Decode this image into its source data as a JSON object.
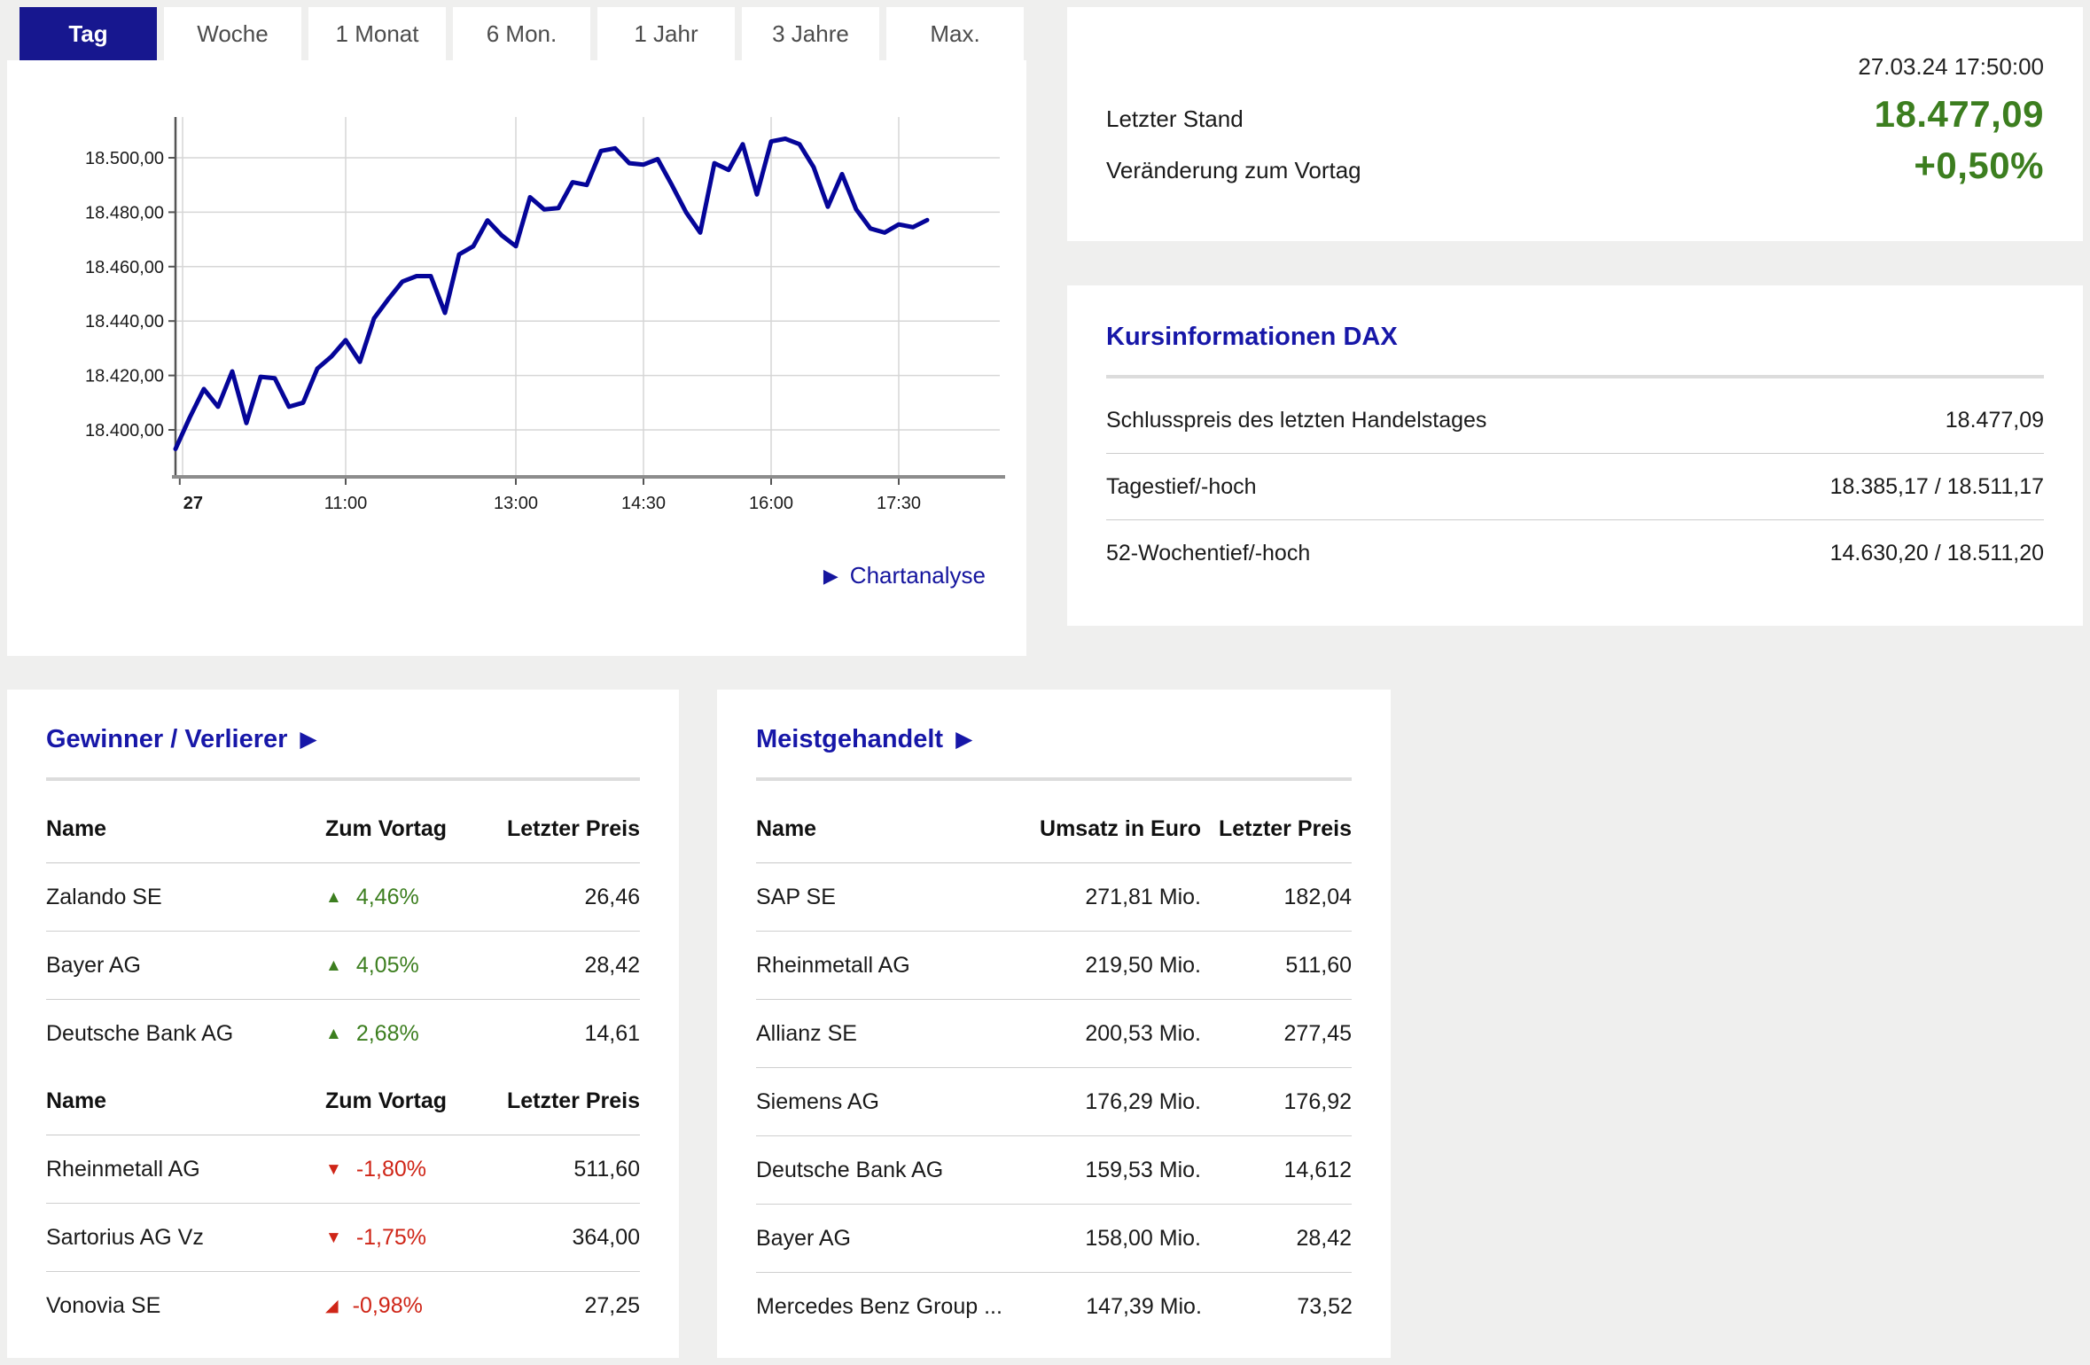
{
  "colors": {
    "accent_navy": "#17178f",
    "title_blue": "#1717a8",
    "line_navy": "#050599",
    "positive_green": "#3c7e1f",
    "negative_red": "#cf2517",
    "page_background": "#efefee"
  },
  "tabs": [
    {
      "label": "Tag",
      "state": "active"
    },
    {
      "label": "Woche",
      "state": ""
    },
    {
      "label": "1 Monat",
      "state": ""
    },
    {
      "label": "6 Mon.",
      "state": ""
    },
    {
      "label": "1 Jahr",
      "state": ""
    },
    {
      "label": "3 Jahre",
      "state": ""
    },
    {
      "label": "Max.",
      "state": ""
    }
  ],
  "chart_link": {
    "icon": "▶",
    "label": "Chartanalyse"
  },
  "chart_data": {
    "type": "line",
    "title": "DAX Intraday (Tag)",
    "line_color": "#050599",
    "grid": true,
    "x_range": [
      "09:00",
      "17:50"
    ],
    "ylim": [
      18383,
      18513
    ],
    "y_ticks": [
      {
        "value": 18400,
        "label": "18.400,00"
      },
      {
        "value": 18420,
        "label": "18.420,00"
      },
      {
        "value": 18440,
        "label": "18.440,00"
      },
      {
        "value": 18460,
        "label": "18.460,00"
      },
      {
        "value": 18480,
        "label": "18.480,00"
      },
      {
        "value": 18500,
        "label": "18.500,00"
      }
    ],
    "x_ticks": [
      {
        "label": "27",
        "time": "09:03",
        "bold": true,
        "grid": false
      },
      {
        "label": "11:00",
        "time": "11:00",
        "bold": false,
        "grid": true
      },
      {
        "label": "13:00",
        "time": "13:00",
        "bold": false,
        "grid": true
      },
      {
        "label": "14:30",
        "time": "14:30",
        "bold": false,
        "grid": true
      },
      {
        "label": "16:00",
        "time": "16:00",
        "bold": false,
        "grid": true
      },
      {
        "label": "17:30",
        "time": "17:30",
        "bold": false,
        "grid": true
      }
    ],
    "times": [
      "09:00",
      "09:10",
      "09:20",
      "09:30",
      "09:40",
      "09:50",
      "10:00",
      "10:10",
      "10:20",
      "10:30",
      "10:40",
      "10:50",
      "11:00",
      "11:10",
      "11:20",
      "11:30",
      "11:40",
      "11:50",
      "12:00",
      "12:10",
      "12:20",
      "12:30",
      "12:40",
      "12:50",
      "13:00",
      "13:10",
      "13:20",
      "13:30",
      "13:40",
      "13:50",
      "14:00",
      "14:10",
      "14:20",
      "14:30",
      "14:40",
      "14:50",
      "15:00",
      "15:10",
      "15:20",
      "15:30",
      "15:40",
      "15:50",
      "16:00",
      "16:10",
      "16:20",
      "16:30",
      "16:40",
      "16:50",
      "17:00",
      "17:10",
      "17:20",
      "17:30",
      "17:40",
      "17:50"
    ],
    "values": [
      18393,
      18404.5,
      18415,
      18408.5,
      18421.5,
      18402.5,
      18419.5,
      18419,
      18408.5,
      18410,
      18422.5,
      18427,
      18433,
      18425,
      18441,
      18448,
      18454.5,
      18456.5,
      18456.5,
      18443,
      18464.5,
      18467.5,
      18477,
      18471.5,
      18467.5,
      18485.5,
      18481,
      18481.5,
      18491,
      18490,
      18502.5,
      18503.5,
      18498,
      18497.5,
      18499.5,
      18490,
      18480,
      18472.5,
      18498,
      18495.5,
      18505,
      18486.5,
      18506,
      18507,
      18505,
      18496.5,
      18482,
      18494,
      18481,
      18474,
      18472.5,
      18475.5,
      18474.5,
      18477.09
    ]
  },
  "quote": {
    "timestamp": "27.03.24 17:50:00",
    "last_label": "Letzter Stand",
    "last_value": "18.477,09",
    "change_label": "Veränderung zum Vortag",
    "change_value": "+0,50%"
  },
  "kursinfo": {
    "title": "Kursinformationen DAX",
    "rows": [
      {
        "label": "Schlusspreis des letzten Handelstages",
        "value": "18.477,09"
      },
      {
        "label": "Tagestief/-hoch",
        "value": "18.385,17 / 18.511,17"
      },
      {
        "label": "52-Wochentief/-hoch",
        "value": "14.630,20 / 18.511,20"
      }
    ]
  },
  "gainers_losers": {
    "title": "Gewinner / Verlierer",
    "icon": "▶",
    "columns": [
      "Name",
      "Zum Vortag",
      "Letzter Preis"
    ],
    "gainers": [
      {
        "name": "Zalando SE",
        "arrow": "▲",
        "direction": "up",
        "change": "4,46%",
        "price": "26,46"
      },
      {
        "name": "Bayer AG",
        "arrow": "▲",
        "direction": "up",
        "change": "4,05%",
        "price": "28,42"
      },
      {
        "name": "Deutsche Bank AG",
        "arrow": "▲",
        "direction": "up",
        "change": "2,68%",
        "price": "14,61"
      }
    ],
    "losers": [
      {
        "name": "Rheinmetall AG",
        "arrow": "▼",
        "direction": "down",
        "change": "-1,80%",
        "price": "511,60"
      },
      {
        "name": "Sartorius AG Vz",
        "arrow": "▼",
        "direction": "down",
        "change": "-1,75%",
        "price": "364,00"
      },
      {
        "name": "Vonovia SE",
        "arrow": "◢",
        "direction": "down-slight",
        "change": "-0,98%",
        "price": "27,25"
      }
    ]
  },
  "most_traded": {
    "title": "Meistgehandelt",
    "icon": "▶",
    "columns": [
      "Name",
      "Umsatz in Euro",
      "Letzter Preis"
    ],
    "rows": [
      {
        "name": "SAP SE",
        "volume": "271,81 Mio.",
        "price": "182,04"
      },
      {
        "name": "Rheinmetall AG",
        "volume": "219,50 Mio.",
        "price": "511,60"
      },
      {
        "name": "Allianz SE",
        "volume": "200,53 Mio.",
        "price": "277,45"
      },
      {
        "name": "Siemens AG",
        "volume": "176,29 Mio.",
        "price": "176,92"
      },
      {
        "name": "Deutsche Bank AG",
        "volume": "159,53 Mio.",
        "price": "14,612"
      },
      {
        "name": "Bayer AG",
        "volume": "158,00 Mio.",
        "price": "28,42"
      },
      {
        "name": "Mercedes Benz Group ...",
        "volume": "147,39 Mio.",
        "price": "73,52"
      }
    ]
  }
}
